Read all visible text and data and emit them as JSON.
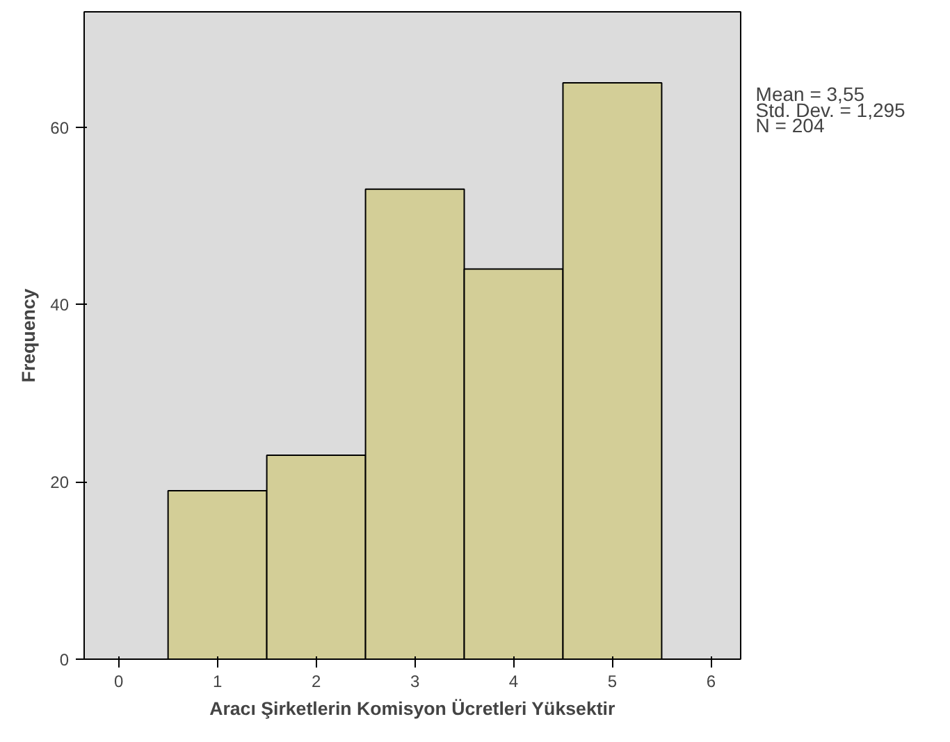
{
  "chart_data": {
    "type": "histogram",
    "xlabel": "Aracı Şirketlerin Komisyon Ücretleri Yüksektir",
    "ylabel": "Frequency",
    "bins": [
      0.5,
      1.5,
      2.5,
      3.5,
      4.5,
      5.5
    ],
    "values": [
      19,
      23,
      53,
      44,
      65
    ],
    "color": "#d3ce97",
    "xlim": [
      -0.35,
      6.3
    ],
    "ylim": [
      0,
      73
    ],
    "xticks": [
      0,
      1,
      2,
      3,
      4,
      5,
      6
    ],
    "yticks": [
      0,
      20,
      40,
      60
    ],
    "grid": false,
    "annotations": [
      "Mean = 3,55",
      "Std. Dev. = 1,295",
      "N = 204"
    ]
  }
}
